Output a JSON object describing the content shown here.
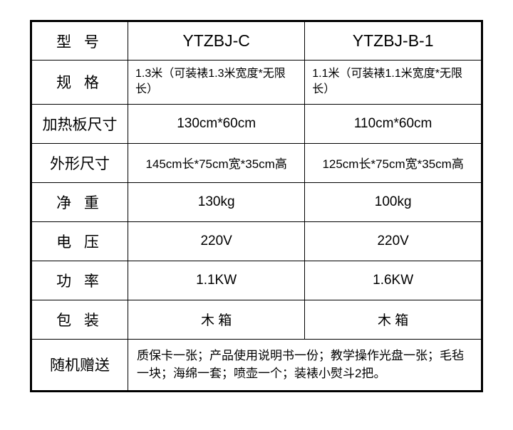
{
  "labels": {
    "model": "型 号",
    "spec": "规 格",
    "heatplate": "加热板尺寸",
    "dimensions": "外形尺寸",
    "netweight": "净 重",
    "voltage": "电 压",
    "power": "功 率",
    "packaging": "包 装",
    "gift": "随机赠送"
  },
  "col1": {
    "model": "YTZBJ-C",
    "spec": "1.3米（可装裱1.3米宽度*无限长）",
    "heatplate": "130cm*60cm",
    "dimensions": "145cm长*75cm宽*35cm高",
    "netweight": "130kg",
    "voltage": "220V",
    "power": "1.1KW",
    "packaging": "木 箱"
  },
  "col2": {
    "model": "YTZBJ-B-1",
    "spec": "1.1米（可装裱1.1米宽度*无限长）",
    "heatplate": "110cm*60cm",
    "dimensions": "125cm长*75cm宽*35cm高",
    "netweight": "100kg",
    "voltage": "220V",
    "power": "1.6KW",
    "packaging": "木 箱"
  },
  "gift_text": "质保卡一张；产品使用说明书一份；教学操作光盘一张；毛毡一块；海绵一套；喷壶一个；装裱小熨斗2把。"
}
